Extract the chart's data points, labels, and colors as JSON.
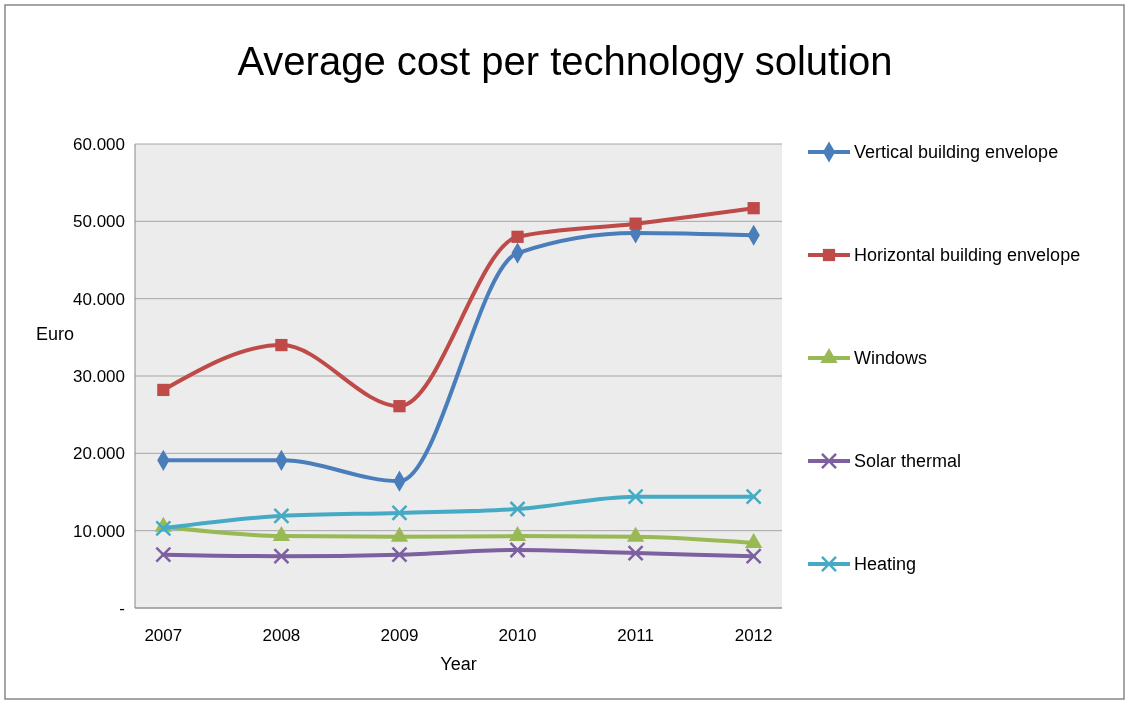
{
  "chart_data": {
    "type": "line",
    "title": "Average cost per technology solution",
    "xlabel": "Year",
    "ylabel": "Euro",
    "categories": [
      "2007",
      "2008",
      "2009",
      "2010",
      "2011",
      "2012"
    ],
    "series": [
      {
        "name": "Vertical building envelope",
        "color": "#4a7ebb",
        "marker": "diamond",
        "values": [
          19100,
          19100,
          16400,
          45900,
          48500,
          48200
        ]
      },
      {
        "name": "Horizontal building envelope",
        "color": "#be4b48",
        "marker": "square",
        "values": [
          28200,
          34000,
          26100,
          48000,
          49700,
          51700
        ]
      },
      {
        "name": "Windows",
        "color": "#98b954",
        "marker": "triangle",
        "values": [
          10500,
          9300,
          9200,
          9300,
          9200,
          8400
        ]
      },
      {
        "name": "Solar thermal",
        "color": "#7d60a0",
        "marker": "cross",
        "values": [
          6900,
          6700,
          6900,
          7500,
          7100,
          6700
        ]
      },
      {
        "name": "Heating",
        "color": "#46aac5",
        "marker": "cross",
        "values": [
          10300,
          11900,
          12300,
          12800,
          14400,
          14400
        ]
      }
    ],
    "ylim": [
      0,
      60000
    ],
    "yticks": [
      {
        "value": 0,
        "label": "-"
      },
      {
        "value": 10000,
        "label": "10.000"
      },
      {
        "value": 20000,
        "label": "20.000"
      },
      {
        "value": 30000,
        "label": "30.000"
      },
      {
        "value": 40000,
        "label": "40.000"
      },
      {
        "value": 50000,
        "label": "50.000"
      },
      {
        "value": 60000,
        "label": "60.000"
      }
    ],
    "grid": "y",
    "legend": "right",
    "line_style": "solid"
  }
}
